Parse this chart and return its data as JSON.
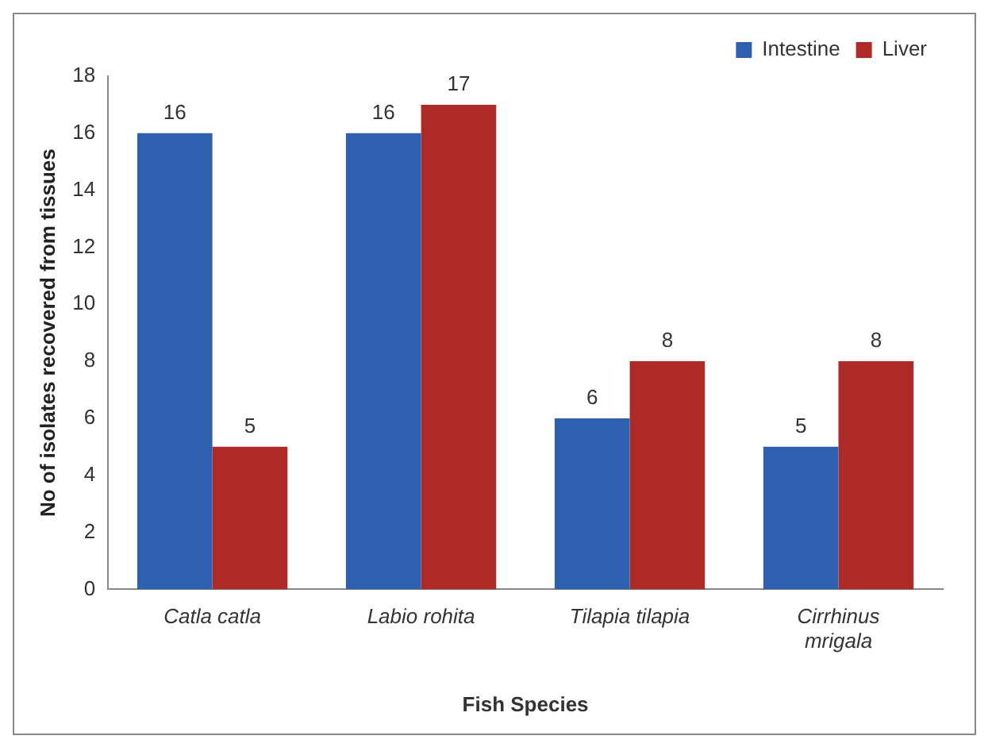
{
  "chart_data": {
    "type": "bar",
    "xlabel": "Fish Species",
    "ylabel": "No of isolates recovered from tissues",
    "categories": [
      "Catla catla",
      "Labio rohita",
      "Tilapia tilapia",
      "Cirrhinus mrigala"
    ],
    "series": [
      {
        "name": "Intestine",
        "color": "#2f5faf",
        "values": [
          16,
          16,
          6,
          5
        ]
      },
      {
        "name": "Liver",
        "color": "#ad2a26",
        "values": [
          5,
          17,
          8,
          8
        ]
      }
    ],
    "ylim": [
      0,
      18
    ],
    "yticks": [
      0,
      2,
      4,
      6,
      8,
      10,
      12,
      14,
      16,
      18
    ],
    "grid": false,
    "legend": "top right",
    "data_labels": true
  }
}
